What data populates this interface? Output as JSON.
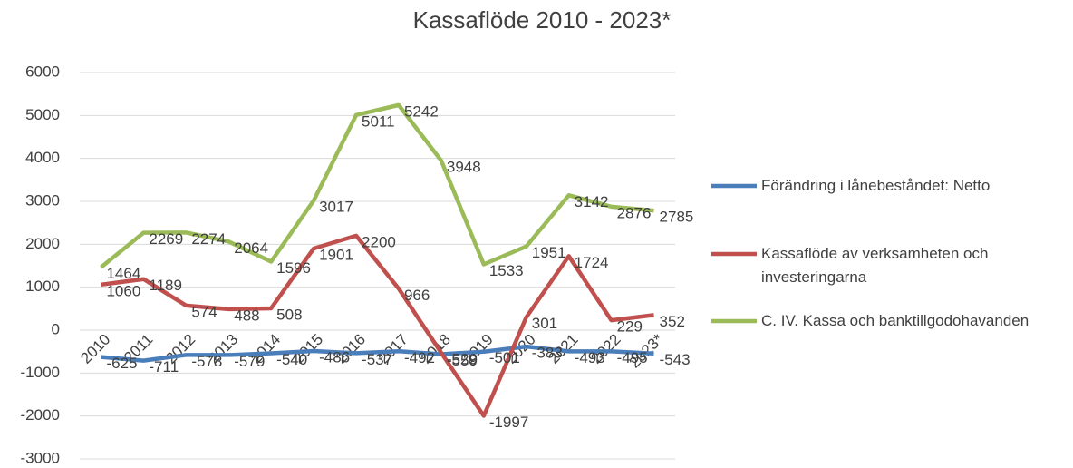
{
  "chart_data": {
    "type": "line",
    "title": "Kassaflöde 2010 - 2023*",
    "categories": [
      "2010",
      "2011",
      "2012",
      "2013",
      "2014",
      "2015",
      "2016",
      "2017",
      "2018",
      "2019",
      "2020",
      "2021",
      "2022",
      "2023*"
    ],
    "series": [
      {
        "name": "Förändring i lånebeståndet: Netto",
        "color": "#4a7ebb",
        "values": [
          -625,
          -711,
          -578,
          -579,
          -540,
          -486,
          -537,
          -492,
          -559,
          -501,
          -383,
          -493,
          -495,
          -543
        ]
      },
      {
        "name": "Kassaflöde av verksamheten och investeringarna",
        "color": "#c0504d",
        "values": [
          1060,
          1189,
          574,
          488,
          508,
          1901,
          2200,
          966,
          -529,
          -1997,
          301,
          1724,
          229,
          352
        ]
      },
      {
        "name": "C. IV. Kassa och banktillgodohavanden",
        "color": "#9bbb59",
        "values": [
          1464,
          2269,
          2274,
          2064,
          1596,
          3017,
          5011,
          5242,
          3948,
          1533,
          1951,
          3142,
          2876,
          2785
        ]
      }
    ],
    "ylim": [
      -3000,
      6000
    ],
    "yticks": [
      -3000,
      -2000,
      -1000,
      0,
      1000,
      2000,
      3000,
      4000,
      5000,
      6000
    ],
    "grid": true,
    "legend": "right"
  }
}
